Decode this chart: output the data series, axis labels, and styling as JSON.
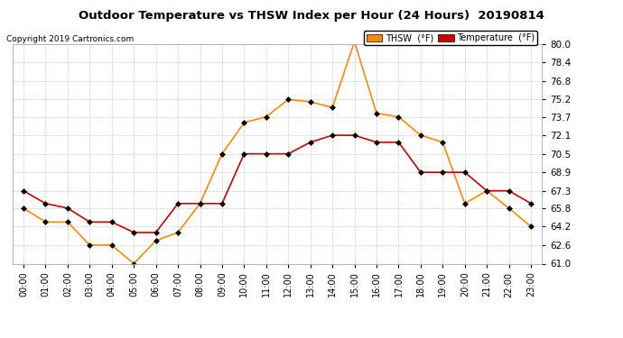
{
  "title": "Outdoor Temperature vs THSW Index per Hour (24 Hours)  20190814",
  "copyright": "Copyright 2019 Cartronics.com",
  "hours": [
    "00:00",
    "01:00",
    "02:00",
    "03:00",
    "04:00",
    "05:00",
    "06:00",
    "07:00",
    "08:00",
    "09:00",
    "10:00",
    "11:00",
    "12:00",
    "13:00",
    "14:00",
    "15:00",
    "16:00",
    "17:00",
    "18:00",
    "19:00",
    "20:00",
    "21:00",
    "22:00",
    "23:00"
  ],
  "temperature": [
    67.3,
    66.2,
    65.8,
    64.6,
    64.6,
    63.7,
    63.7,
    66.2,
    66.2,
    66.2,
    70.5,
    70.5,
    70.5,
    71.5,
    72.1,
    72.1,
    71.5,
    71.5,
    68.9,
    68.9,
    68.9,
    67.3,
    67.3,
    66.2
  ],
  "thsw": [
    65.8,
    64.6,
    64.6,
    62.6,
    62.6,
    61.0,
    63.0,
    63.7,
    66.2,
    70.5,
    73.2,
    73.7,
    75.2,
    75.0,
    74.5,
    80.2,
    74.0,
    73.7,
    72.1,
    71.5,
    66.2,
    67.3,
    65.8,
    64.2
  ],
  "temp_color": "#cc0000",
  "thsw_color": "#ff8800",
  "ylim": [
    61.0,
    80.0
  ],
  "yticks": [
    61.0,
    62.6,
    64.2,
    65.8,
    67.3,
    68.9,
    70.5,
    72.1,
    73.7,
    75.2,
    76.8,
    78.4,
    80.0
  ],
  "bg_color": "#ffffff",
  "grid_color": "#cccccc",
  "legend_thsw_bg": "#ff8800",
  "legend_temp_bg": "#cc0000",
  "legend_thsw_label": "THSW  (°F)",
  "legend_temp_label": "Temperature  (°F)"
}
